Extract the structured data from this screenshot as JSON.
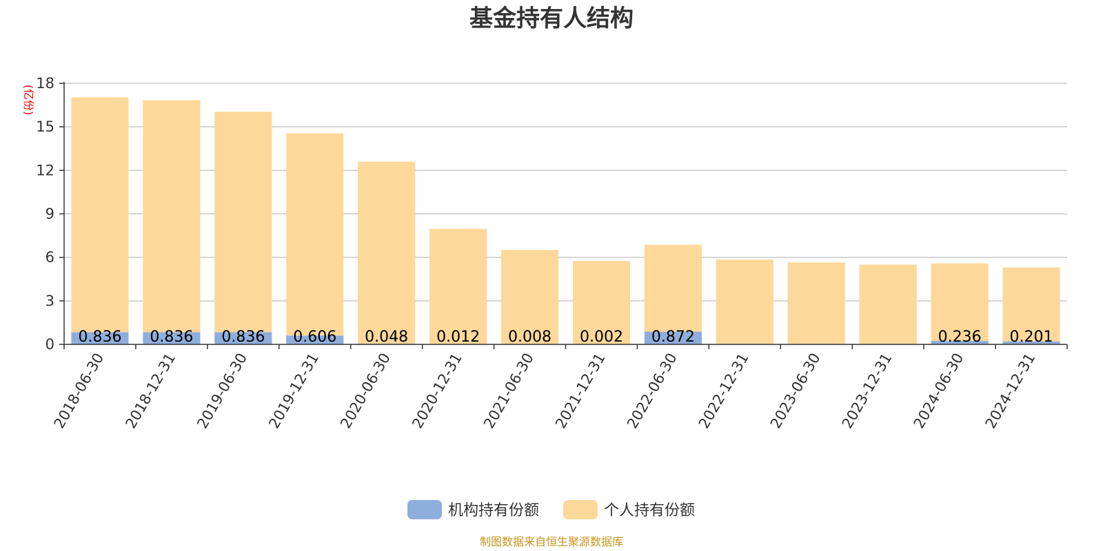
{
  "chart_data": {
    "type": "bar",
    "stacked": true,
    "title": "基金持有人结构",
    "ylabel": "(亿份)",
    "ylim": [
      0,
      18
    ],
    "yticks": [
      0,
      3,
      6,
      9,
      12,
      15,
      18
    ],
    "grid": true,
    "legend_position": "bottom",
    "categories": [
      "2018-06-30",
      "2018-12-31",
      "2019-06-30",
      "2019-12-31",
      "2020-06-30",
      "2020-12-31",
      "2021-06-30",
      "2021-12-31",
      "2022-06-30",
      "2022-12-31",
      "2023-06-30",
      "2023-12-31",
      "2024-06-30",
      "2024-12-31"
    ],
    "series": [
      {
        "name": "机构持有份额",
        "color": "#8eaedc",
        "values": [
          0.836,
          0.836,
          0.836,
          0.606,
          0.048,
          0.012,
          0.008,
          0.002,
          0.872,
          0.0,
          0.0,
          0.0,
          0.236,
          0.201
        ],
        "labels": [
          "0.836",
          "0.836",
          "0.836",
          "0.606",
          "0.048",
          "0.012",
          "0.008",
          "0.002",
          "0.872",
          "",
          "",
          "",
          "0.236",
          "0.201"
        ]
      },
      {
        "name": "个人持有份额",
        "color": "#fdd89b",
        "values": [
          16.2,
          16.0,
          15.2,
          13.95,
          12.55,
          7.95,
          6.5,
          5.75,
          6.0,
          5.85,
          5.65,
          5.5,
          5.35,
          5.1
        ]
      }
    ],
    "source": "制图数据来自恒生聚源数据库"
  }
}
